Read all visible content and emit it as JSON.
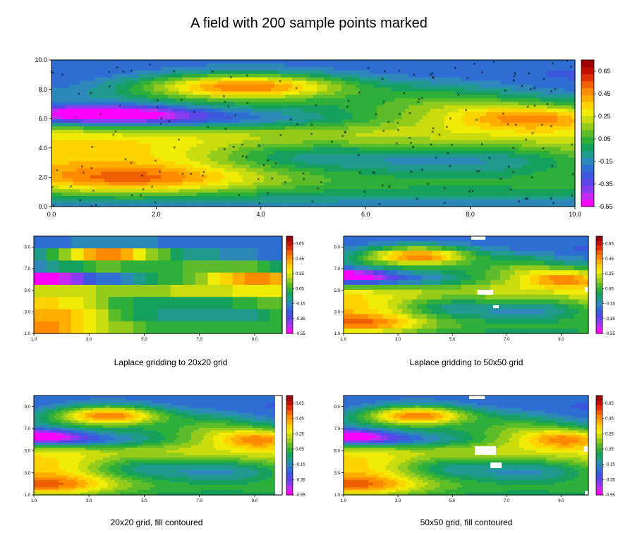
{
  "title": "A field with 200 sample points marked",
  "colors": {
    "colormap": [
      "#ff00ff",
      "#c42bf0",
      "#8a3cf0",
      "#5a46e6",
      "#3d58dc",
      "#2f6fd4",
      "#2d87b8",
      "#1f9a8c",
      "#16a060",
      "#2fae3a",
      "#5cbc2a",
      "#93cc1c",
      "#c8dc10",
      "#f0ec08",
      "#ffd400",
      "#ffae00",
      "#ff8a00",
      "#f06000",
      "#e03000",
      "#c01000",
      "#9a0000"
    ]
  },
  "chart_data": [
    {
      "type": "heatmap",
      "name": "main",
      "xlim": [
        0.0,
        10.0
      ],
      "ylim": [
        0.0,
        10.0
      ],
      "xticks": [
        "0.0",
        "2.0",
        "4.0",
        "6.0",
        "8.0",
        "10.0"
      ],
      "yticks": [
        "0.0",
        "2.0",
        "4.0",
        "6.0",
        "8.0",
        "10.0"
      ],
      "colorbar": [
        "0.65",
        "0.45",
        "0.25",
        "0.05",
        "-0.15",
        "-0.35",
        "-0.55"
      ],
      "sample_points": 200,
      "grid": false
    },
    {
      "type": "heatmap",
      "caption": "Laplace gridding to 20x20 grid",
      "grid_size": 20,
      "xlim": [
        1.0,
        10.0
      ],
      "ylim": [
        1.0,
        10.0
      ],
      "xticks": [
        "1.0",
        "3.0",
        "5.0",
        "7.0",
        "9.0"
      ],
      "yticks": [
        "1.0",
        "3.0",
        "5.0",
        "7.0",
        "9.0"
      ],
      "colorbar": [
        "0.65",
        "0.45",
        "0.25",
        "0.05",
        "-0.15",
        "-0.35",
        "-0.55"
      ]
    },
    {
      "type": "heatmap",
      "caption": "Laplace gridding to 50x50 grid",
      "grid_size": 50,
      "xlim": [
        1.0,
        10.0
      ],
      "ylim": [
        1.0,
        10.0
      ],
      "xticks": [
        "1.0",
        "3.0",
        "5.0",
        "7.0",
        "9.0"
      ],
      "yticks": [
        "1.0",
        "3.0",
        "5.0",
        "7.0",
        "9.0"
      ],
      "colorbar": [
        "0.65",
        "0.45",
        "0.25",
        "0.05",
        "-0.15",
        "-0.35",
        "-0.55"
      ]
    },
    {
      "type": "heatmap",
      "caption": "20x20 grid, fill contoured",
      "grid_size": 20,
      "xlim": [
        1.0,
        10.0
      ],
      "ylim": [
        1.0,
        10.0
      ],
      "xticks": [
        "1.0",
        "3.0",
        "5.0",
        "7.0",
        "9.0"
      ],
      "yticks": [
        "1.0",
        "3.0",
        "5.0",
        "7.0",
        "9.0"
      ],
      "colorbar": [
        "0.65",
        "0.45",
        "0.25",
        "0.05",
        "-0.15",
        "-0.35",
        "-0.55"
      ]
    },
    {
      "type": "heatmap",
      "caption": "50x50 grid, fill contoured",
      "grid_size": 50,
      "xlim": [
        1.0,
        10.0
      ],
      "ylim": [
        1.0,
        10.0
      ],
      "xticks": [
        "1.0",
        "3.0",
        "5.0",
        "7.0",
        "9.0"
      ],
      "yticks": [
        "1.0",
        "3.0",
        "5.0",
        "7.0",
        "9.0"
      ],
      "colorbar": [
        "0.65",
        "0.45",
        "0.25",
        "0.05",
        "-0.15",
        "-0.35",
        "-0.55"
      ]
    }
  ]
}
